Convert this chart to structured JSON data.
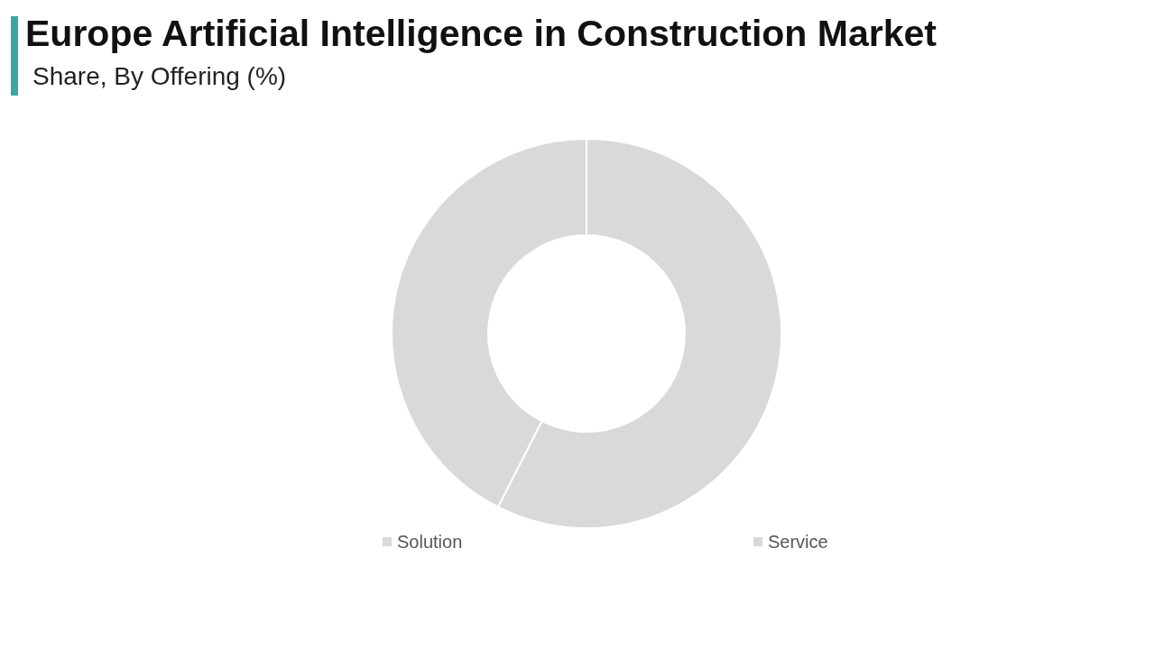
{
  "chart_data": {
    "type": "donut",
    "title": "Europe Artificial Intelligence in Construction Market",
    "subtitle": "Share, By Offering (%)",
    "categories": [
      "Solution",
      "Service"
    ],
    "values": [
      57.5,
      42.5
    ],
    "colors": [
      "#d9d9d9",
      "#d9d9d9"
    ],
    "legend": "bottom"
  }
}
